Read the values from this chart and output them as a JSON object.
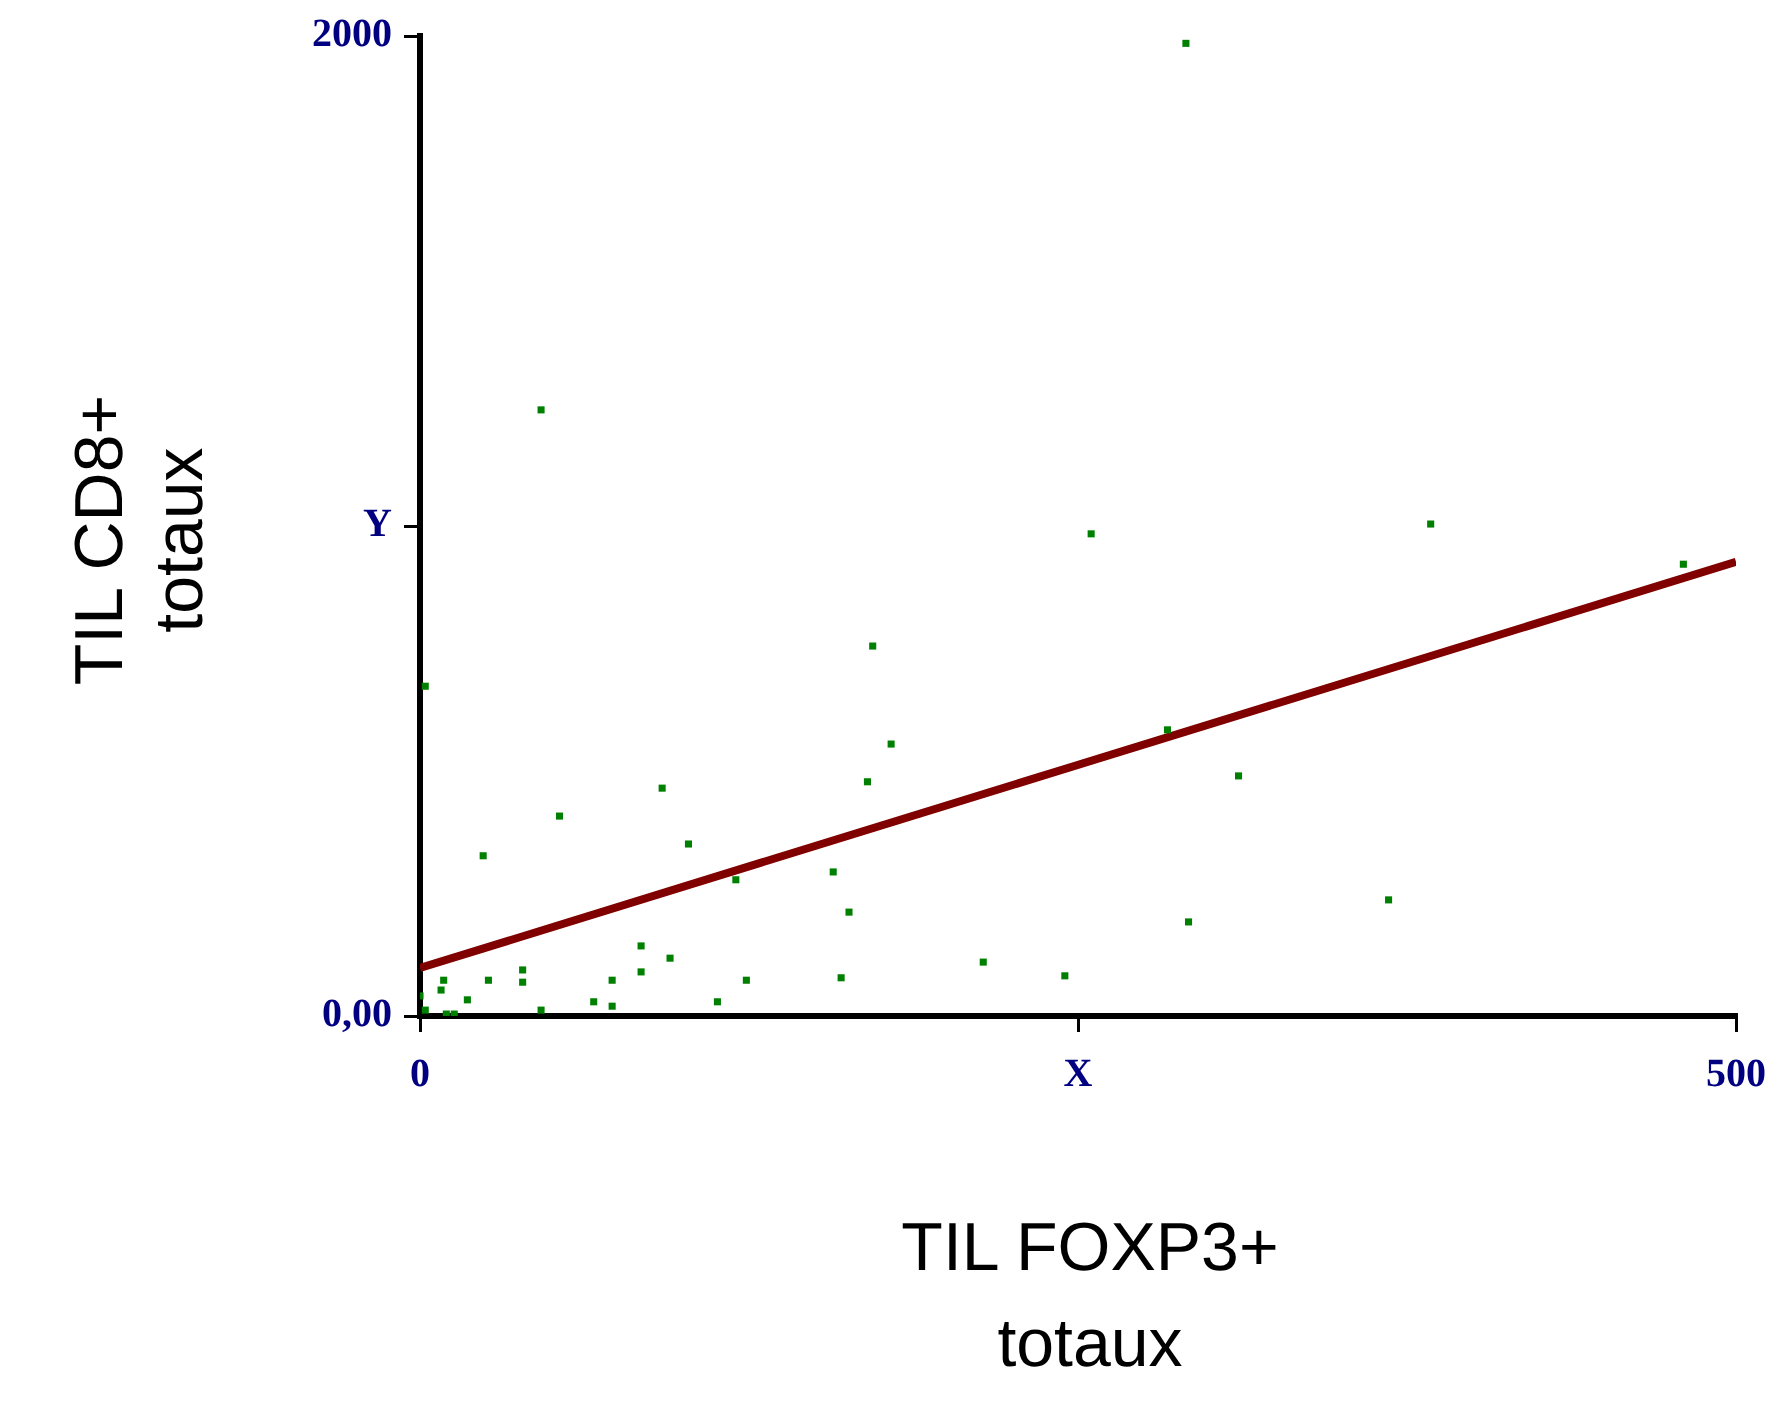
{
  "chart_data": {
    "type": "scatter",
    "xlabel": "TIL FOXP3+ totaux",
    "ylabel": "TIL CD8+ totaux",
    "xlim": [
      0,
      500
    ],
    "xticks": [
      0,
      {
        "value": 250,
        "label": "X"
      },
      500
    ],
    "ylim": [
      0,
      2000
    ],
    "yticks": [
      {
        "value": 0,
        "label": "0,00"
      },
      {
        "value": 1000,
        "label": "Y"
      },
      2000
    ],
    "grid": false,
    "legend": false,
    "marker": "square",
    "series": [
      {
        "color": "#008000",
        "x": [
          291,
          46,
          255,
          384,
          480,
          2,
          172,
          179,
          170,
          92,
          102,
          24,
          53,
          157,
          311,
          284,
          120,
          163,
          292,
          368,
          214,
          245,
          160,
          124,
          39,
          39,
          84,
          84,
          95,
          73,
          66,
          73,
          46,
          113,
          26,
          18,
          9,
          8,
          0,
          2,
          10,
          13
        ],
        "values": [
          1985,
          1237,
          984,
          1004,
          922,
          673,
          755,
          555,
          478,
          465,
          351,
          327,
          408,
          294,
          490,
          584,
          278,
          212,
          192,
          237,
          110,
          82,
          78,
          73,
          94,
          69,
          143,
          90,
          118,
          73,
          29,
          20,
          12,
          29,
          73,
          33,
          73,
          53,
          41,
          12,
          4,
          4
        ]
      },
      {
        "type": "line",
        "color": "#800000",
        "line_style": "solid",
        "marker": "none",
        "x": [
          0,
          500
        ],
        "values": [
          98,
          927
        ]
      }
    ]
  }
}
